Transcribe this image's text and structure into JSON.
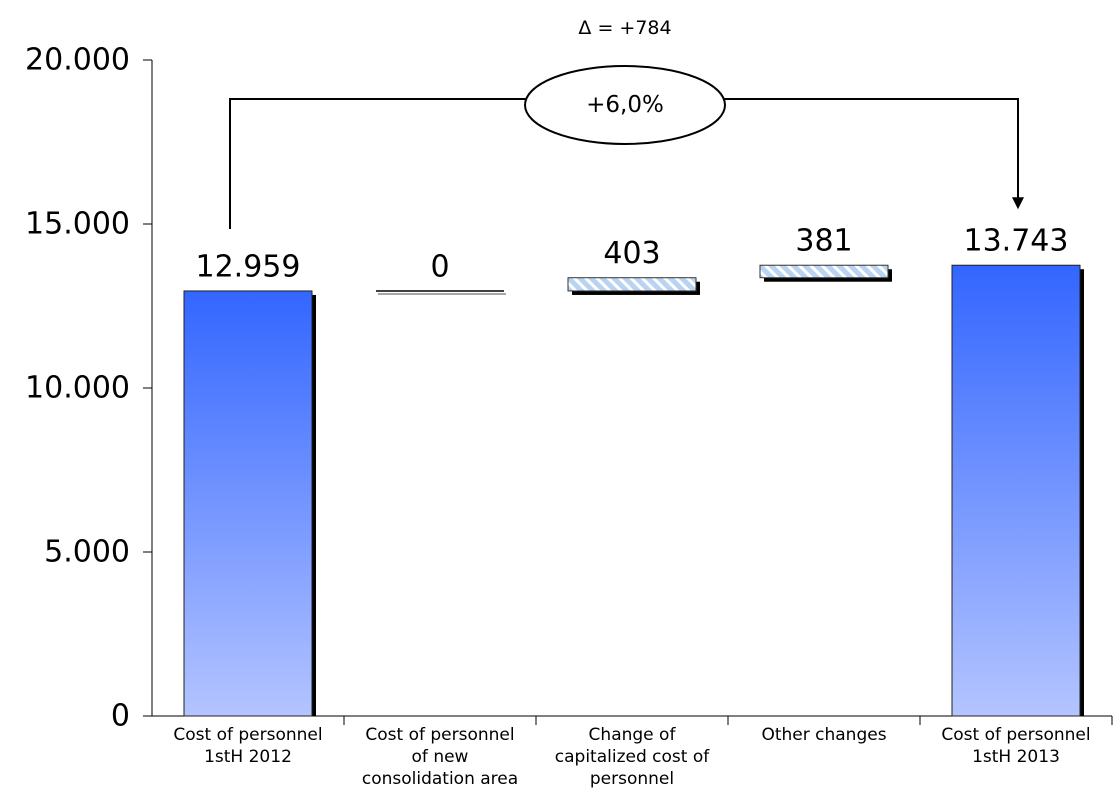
{
  "chart_data": {
    "type": "bar",
    "subtype": "waterfall",
    "categories": [
      "Cost of personnel\n1stH 2012",
      "Cost of personnel\nof new\nconsolidation area",
      "Change of\ncapitalized cost of\npersonnel",
      "Other changes",
      "Cost of personnel\n1stH 2013"
    ],
    "bars": [
      {
        "kind": "total",
        "base": 0,
        "value": 12959,
        "label": "12.959"
      },
      {
        "kind": "delta",
        "base": 12959,
        "value": 0,
        "label": "0"
      },
      {
        "kind": "delta",
        "base": 12959,
        "value": 403,
        "label": "403"
      },
      {
        "kind": "delta",
        "base": 13362,
        "value": 381,
        "label": "381"
      },
      {
        "kind": "total",
        "base": 0,
        "value": 13743,
        "label": "13.743"
      }
    ],
    "yticks": [
      {
        "value": 0,
        "label": "0"
      },
      {
        "value": 5000,
        "label": "5.000"
      },
      {
        "value": 10000,
        "label": "10.000"
      },
      {
        "value": 15000,
        "label": "15.000"
      },
      {
        "value": 20000,
        "label": "20.000"
      }
    ],
    "ylim": [
      0,
      20000
    ],
    "grid": false,
    "title": "",
    "xlabel": "",
    "ylabel": "",
    "annotation": {
      "delta_text": "Δ = +784",
      "percent_text": "+6,0%"
    },
    "colors": {
      "total_top": "#3366ff",
      "total_bottom": "#b4c4ff",
      "delta_fill": "#b8d4f2",
      "delta_stripe": "#ffffff",
      "shadow": "#000000"
    }
  }
}
